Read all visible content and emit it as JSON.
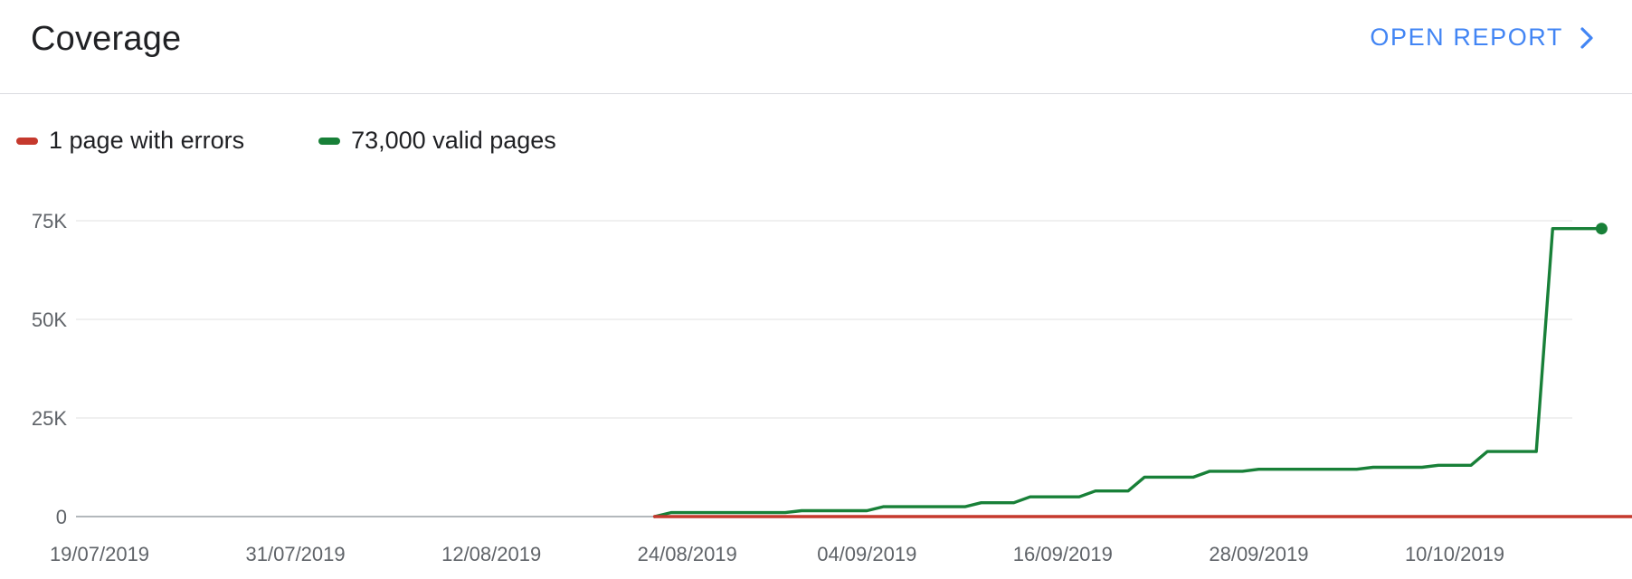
{
  "header": {
    "title": "Coverage",
    "open_report_label": "OPEN REPORT"
  },
  "colors": {
    "errors": "#c5392d",
    "valid": "#188038",
    "link": "#4285f4",
    "grid": "#e6e6e6",
    "axis": "#9aa0a6"
  },
  "chart_data": {
    "type": "line",
    "xlabel": "",
    "ylabel": "",
    "ylim": [
      0,
      75000
    ],
    "xlim": [
      "2019-07-19",
      "2019-10-22"
    ],
    "x_ticks": [
      "19/07/2019",
      "31/07/2019",
      "12/08/2019",
      "24/08/2019",
      "04/09/2019",
      "16/09/2019",
      "28/09/2019",
      "10/10/2019"
    ],
    "x_tick_dates": [
      "2019-07-19",
      "2019-07-31",
      "2019-08-12",
      "2019-08-24",
      "2019-09-04",
      "2019-09-16",
      "2019-09-28",
      "2019-10-10"
    ],
    "y_ticks": [
      "0",
      "25K",
      "50K",
      "75K"
    ],
    "y_tick_values": [
      0,
      25000,
      50000,
      75000
    ],
    "grid": true,
    "legend_position": "top-left",
    "series": [
      {
        "name": "1 page with errors",
        "color_key": "errors",
        "points": [
          [
            "2019-08-22",
            0
          ],
          [
            "2019-10-22",
            0
          ]
        ]
      },
      {
        "name": "73,000 valid pages",
        "color_key": "valid",
        "points": [
          [
            "2019-08-22",
            0
          ],
          [
            "2019-08-23",
            1000
          ],
          [
            "2019-08-30",
            1000
          ],
          [
            "2019-08-31",
            1500
          ],
          [
            "2019-09-04",
            1500
          ],
          [
            "2019-09-05",
            2500
          ],
          [
            "2019-09-10",
            2500
          ],
          [
            "2019-09-11",
            3500
          ],
          [
            "2019-09-13",
            3500
          ],
          [
            "2019-09-14",
            5000
          ],
          [
            "2019-09-17",
            5000
          ],
          [
            "2019-09-18",
            6500
          ],
          [
            "2019-09-20",
            6500
          ],
          [
            "2019-09-21",
            10000
          ],
          [
            "2019-09-24",
            10000
          ],
          [
            "2019-09-25",
            11500
          ],
          [
            "2019-09-27",
            11500
          ],
          [
            "2019-09-28",
            12000
          ],
          [
            "2019-10-04",
            12000
          ],
          [
            "2019-10-05",
            12500
          ],
          [
            "2019-10-08",
            12500
          ],
          [
            "2019-10-09",
            13000
          ],
          [
            "2019-10-11",
            13000
          ],
          [
            "2019-10-12",
            16500
          ],
          [
            "2019-10-15",
            16500
          ],
          [
            "2019-10-16",
            73000
          ],
          [
            "2019-10-19",
            73000
          ]
        ]
      }
    ]
  }
}
